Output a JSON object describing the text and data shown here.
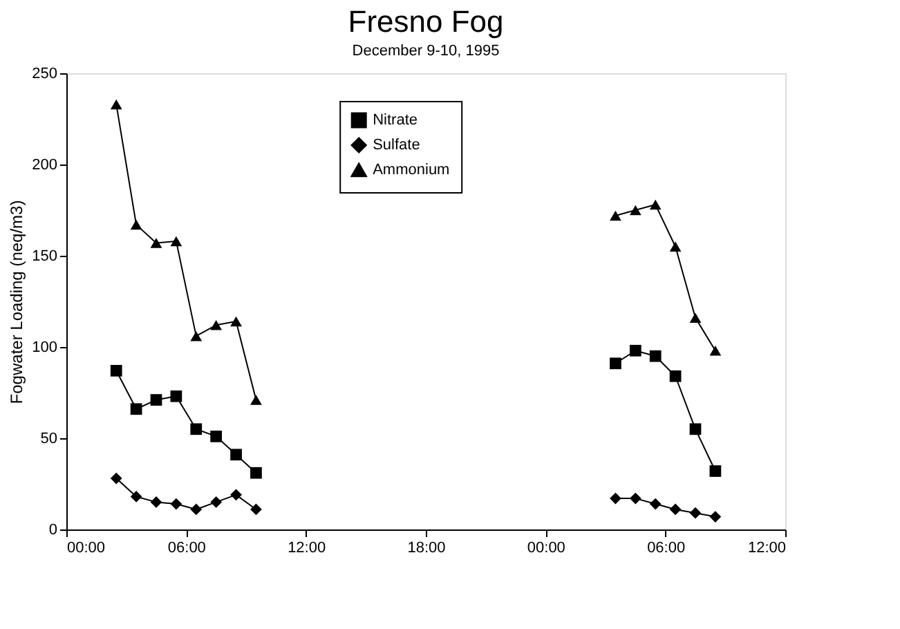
{
  "chart_data": {
    "type": "line",
    "title": "Fresno Fog",
    "subtitle": "December 9-10, 1995",
    "ylabel": "Fogwater Loading (neq/m3)",
    "x": [
      "1995-12-09T02:30",
      "1995-12-09T03:30",
      "1995-12-09T04:30",
      "1995-12-09T05:30",
      "1995-12-09T06:30",
      "1995-12-09T07:30",
      "1995-12-09T08:30",
      "1995-12-09T09:30",
      "1995-12-09T18:00",
      "1995-12-10T03:30",
      "1995-12-10T04:30",
      "1995-12-10T05:30",
      "1995-12-10T06:30",
      "1995-12-10T07:30",
      "1995-12-10T08:30"
    ],
    "series": [
      {
        "name": "Nitrate",
        "color": "#000000",
        "marker": "square",
        "values": [
          87,
          66,
          71,
          73,
          55,
          51,
          41,
          31,
          null,
          91,
          98,
          95,
          84,
          55,
          32
        ]
      },
      {
        "name": "Sulfate",
        "color": "#000000",
        "marker": "diamond",
        "values": [
          28,
          18,
          15,
          14,
          11,
          15,
          19,
          11,
          null,
          17,
          17,
          14,
          11,
          9,
          7
        ]
      },
      {
        "name": "Ammonium",
        "color": "#000000",
        "marker": "triangle",
        "values": [
          233,
          167,
          157,
          158,
          106,
          112,
          114,
          71,
          null,
          172,
          175,
          178,
          155,
          116,
          98
        ]
      }
    ],
    "xlim": [
      "1995-12-09T00:00",
      "1995-12-10T12:00"
    ],
    "xticks": [
      {
        "value": "1995-12-09T00:00",
        "label": "00:00"
      },
      {
        "value": "1995-12-09T06:00",
        "label": "06:00"
      },
      {
        "value": "1995-12-09T12:00",
        "label": "12:00"
      },
      {
        "value": "1995-12-09T18:00",
        "label": "18:00"
      },
      {
        "value": "1995-12-10T00:00",
        "label": "00:00"
      },
      {
        "value": "1995-12-10T06:00",
        "label": "06:00"
      },
      {
        "value": "1995-12-10T12:00",
        "label": "12:00"
      }
    ],
    "ylim": [
      0,
      250
    ],
    "yticks": [
      0,
      50,
      100,
      150,
      200,
      250
    ],
    "legend": "top",
    "grid": false,
    "line_style": "solid"
  }
}
